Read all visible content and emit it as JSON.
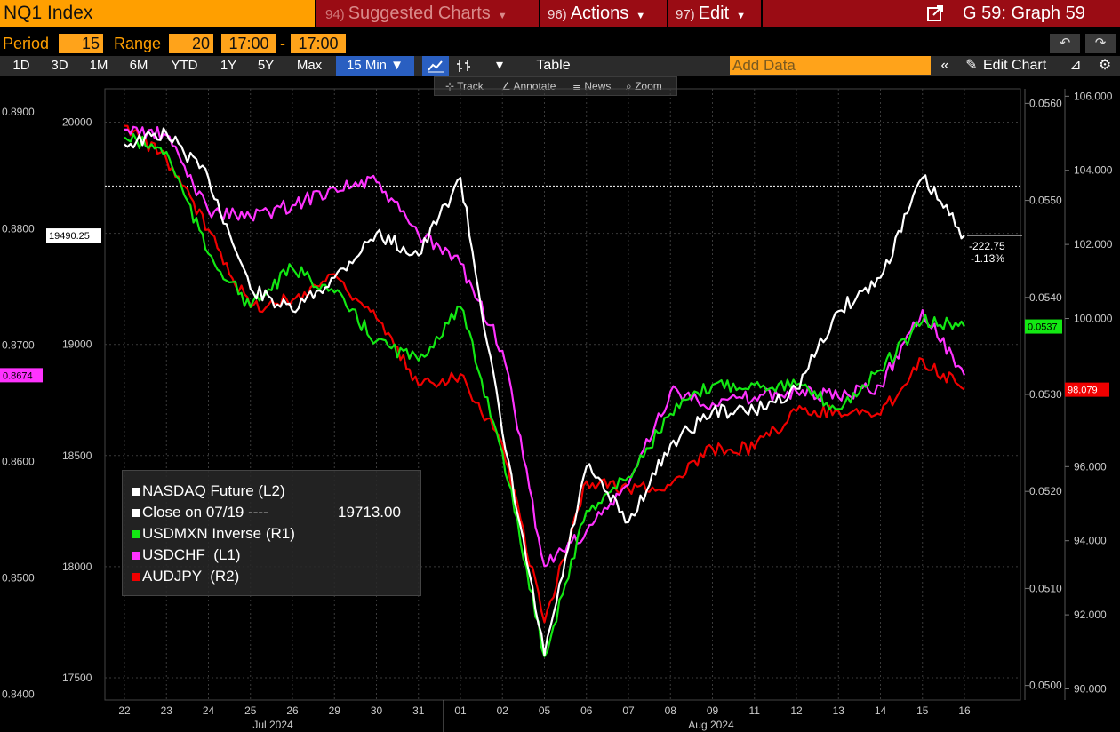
{
  "header": {
    "ticker": "NQ1 Index",
    "menus": [
      {
        "num": "94)",
        "label": "Suggested Charts"
      },
      {
        "num": "96)",
        "label": "Actions"
      },
      {
        "num": "97)",
        "label": "Edit"
      }
    ],
    "graph_id": "G 59: Graph 59"
  },
  "params": {
    "period_label": "Period",
    "period_value": "15",
    "range_label": "Range",
    "range_value": "20",
    "time_from": "17:00",
    "time_to": "17:00"
  },
  "toolbar": {
    "periods": [
      "1D",
      "3D",
      "1M",
      "6M",
      "YTD",
      "1Y",
      "5Y",
      "Max",
      "15 Min ▼"
    ],
    "table_label": "Table",
    "add_data_placeholder": "Add Data",
    "edit_chart_label": "Edit Chart"
  },
  "tools": {
    "track": "Track",
    "annotate": "Annotate",
    "news": "News",
    "zoom": "Zoom"
  },
  "colors": {
    "usdmxn": "#13e813",
    "usdchf": "#ff33ff",
    "audjpy": "#f00000",
    "nasdaq": "#ffffff",
    "accent": "#ffa31a"
  },
  "chart_data": {
    "type": "line",
    "x_label_months": [
      "Jul 2024",
      "Aug 2024"
    ],
    "x_ticks": [
      "22",
      "23",
      "24",
      "25",
      "26",
      "29",
      "30",
      "31",
      "01",
      "02",
      "05",
      "06",
      "07",
      "08",
      "09",
      "11",
      "12",
      "13",
      "14",
      "15",
      "16"
    ],
    "axes": {
      "L2": {
        "ticks": [
          "20000",
          "19500",
          "19000",
          "18500",
          "18000",
          "17500"
        ],
        "range": [
          17400,
          20150
        ]
      },
      "L1": {
        "ticks": [
          "0.8900",
          "0.8800",
          "0.8700",
          "0.8600",
          "0.8500",
          "0.8400"
        ],
        "range": [
          0.8395,
          0.892
        ]
      },
      "R1": {
        "ticks": [
          "0.0560",
          "0.0550",
          "0.0540",
          "0.0530",
          "0.0520",
          "0.0510",
          "0.0500"
        ],
        "range": [
          0.04985,
          0.05615
        ]
      },
      "R2": {
        "ticks": [
          "106.000",
          "104.000",
          "102.000",
          "100.000",
          "98.000",
          "96.000",
          "94.000",
          "92.000",
          "90.000"
        ],
        "range": [
          89.7,
          106.2
        ]
      }
    },
    "series": [
      {
        "name": "NASDAQ Future (L2)",
        "axis": "L2",
        "values": [
          19900,
          19950,
          19750,
          19250,
          19150,
          19300,
          19500,
          19400,
          19750,
          18600,
          17600,
          18450,
          18200,
          18550,
          18700,
          18700,
          18800,
          19150,
          19300,
          19750,
          19490.25
        ]
      },
      {
        "name": "USDMXN Inverse (R1)",
        "axis": "R1",
        "values": [
          0.05565,
          0.0555,
          0.05445,
          0.0539,
          0.0543,
          0.05405,
          0.05355,
          0.05335,
          0.0539,
          0.0524,
          0.0503,
          0.0518,
          0.05215,
          0.0528,
          0.0531,
          0.0531,
          0.0531,
          0.05285,
          0.05325,
          0.05375,
          0.0537
        ]
      },
      {
        "name": "USDCHF (L1)",
        "axis": "L1",
        "values": [
          0.8885,
          0.888,
          0.8815,
          0.881,
          0.882,
          0.8835,
          0.884,
          0.8795,
          0.877,
          0.8695,
          0.851,
          0.854,
          0.858,
          0.866,
          0.865,
          0.8655,
          0.866,
          0.8655,
          0.8665,
          0.873,
          0.8674
        ]
      },
      {
        "name": "AUDJPY (R2)",
        "axis": "R2",
        "values": [
          105.2,
          104.3,
          102.4,
          100.3,
          100.5,
          101.2,
          100.0,
          98.2,
          98.5,
          96.6,
          91.8,
          95.6,
          95.4,
          95.5,
          96.5,
          96.5,
          97.5,
          97.5,
          97.4,
          98.9,
          98.079
        ]
      }
    ],
    "reference_line": {
      "name": "Close on 07/19",
      "value": 19713.0,
      "value_text": "19713.00"
    },
    "last_values": {
      "nasdaq": "19490.25",
      "usdchf": "0.8674",
      "usdmxn": "0.0537",
      "audjpy": "98.079"
    },
    "change": {
      "abs": "-222.75",
      "pct": "-1.13%"
    },
    "legend": {
      "entries": [
        "NASDAQ Future (L2)",
        "Close on 07/19 ----",
        "USDMXN Inverse (R1)",
        "USDCHF  (L1)",
        "AUDJPY  (R2)"
      ],
      "close_value": "19713.00"
    },
    "grid": true,
    "legend_placement": "bottom-left"
  }
}
